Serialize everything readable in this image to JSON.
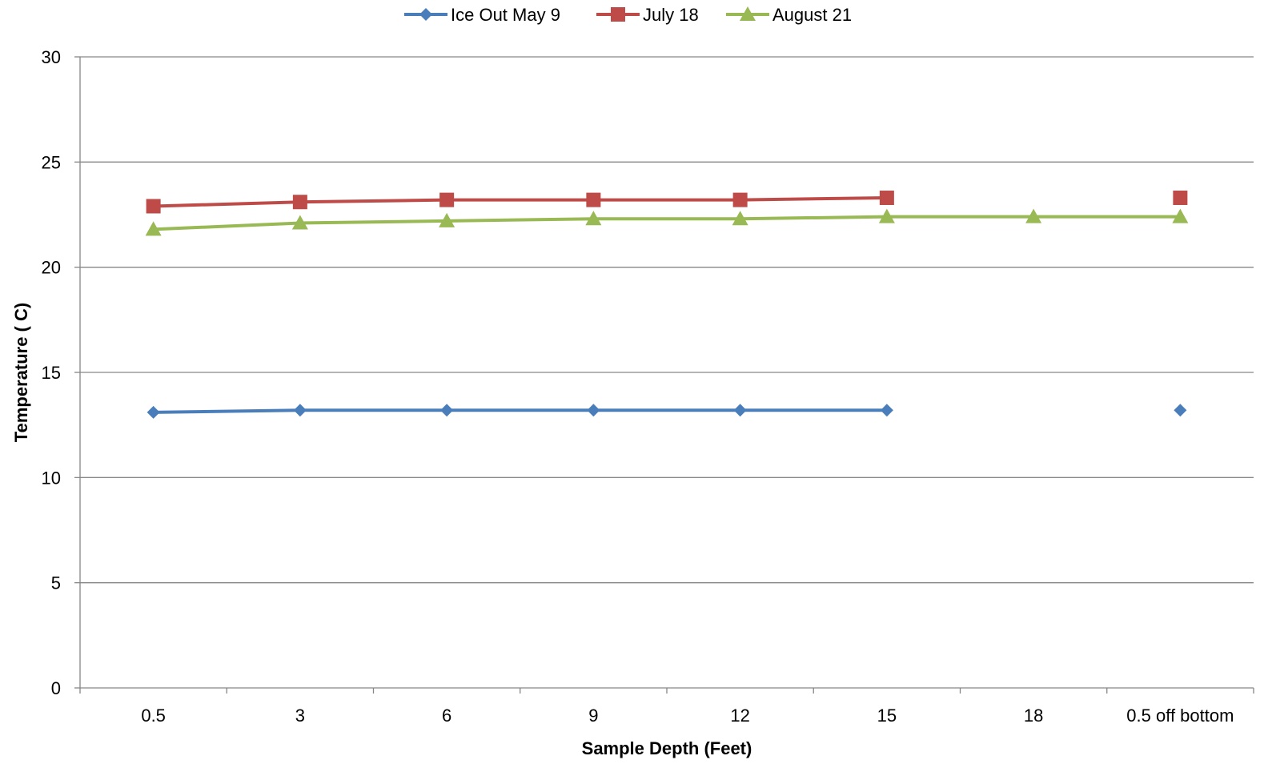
{
  "chart_data": {
    "type": "line",
    "title": "",
    "xlabel": "Sample Depth (Feet)",
    "ylabel": "Temperature ( C)",
    "categories": [
      "0.5",
      "3",
      "6",
      "9",
      "12",
      "15",
      "18",
      "0.5 off bottom"
    ],
    "ylim": [
      0,
      30
    ],
    "yticks": [
      "0",
      "5",
      "10",
      "15",
      "20",
      "25",
      "30"
    ],
    "grid": true,
    "legend_position": "top",
    "series": [
      {
        "name": "Ice Out May 9",
        "color": "#4a7ebb",
        "marker": "diamond",
        "values": [
          13.1,
          13.2,
          13.2,
          13.2,
          13.2,
          13.2,
          null,
          13.2
        ]
      },
      {
        "name": "July 18",
        "color": "#be4b48",
        "marker": "square",
        "values": [
          22.9,
          23.1,
          23.2,
          23.2,
          23.2,
          23.3,
          null,
          23.3
        ]
      },
      {
        "name": "August 21",
        "color": "#98b954",
        "marker": "triangle",
        "values": [
          21.8,
          22.1,
          22.2,
          22.3,
          22.3,
          22.4,
          22.4,
          22.4
        ]
      }
    ]
  }
}
